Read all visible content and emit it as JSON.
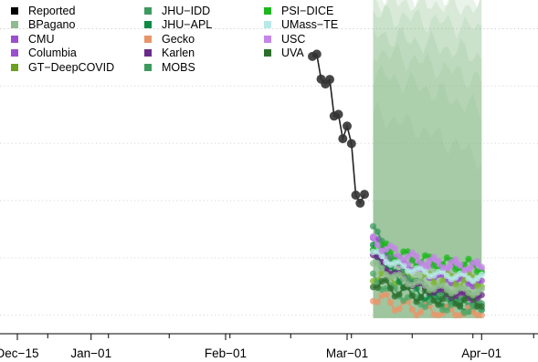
{
  "chart_data": {
    "type": "line",
    "x_ticks": [
      {
        "label": "Dec−15",
        "date": "2020-12-15"
      },
      {
        "label": "Jan−01",
        "date": "2021-01-01"
      },
      {
        "label": "Feb−01",
        "date": "2021-02-01"
      },
      {
        "label": "Mar−01",
        "date": "2021-03-01"
      },
      {
        "label": "Apr−01",
        "date": "2021-04-01"
      }
    ],
    "legend": {
      "placement": "top-left",
      "columns": [
        [
          {
            "name": "Reported",
            "color": "#000000"
          },
          {
            "name": "BPagano",
            "color": "#8fbc8f"
          },
          {
            "name": "CMU",
            "color": "#9b4fcf"
          },
          {
            "name": "Columbia",
            "color": "#9b4fcf"
          },
          {
            "name": "GT−DeepCOVID",
            "color": "#6aa121"
          }
        ],
        [
          {
            "name": "JHU−IDD",
            "color": "#3c9a5f"
          },
          {
            "name": "JHU−APL",
            "color": "#0e8a45"
          },
          {
            "name": "Gecko",
            "color": "#e8956a"
          },
          {
            "name": "Karlen",
            "color": "#6b2a8a"
          },
          {
            "name": "MOBS",
            "color": "#3c9a5f"
          }
        ],
        [
          {
            "name": "PSI−DICE",
            "color": "#1eb81e"
          },
          {
            "name": "UMass−TE",
            "color": "#b8e8e8"
          },
          {
            "name": "USC",
            "color": "#c486e8"
          },
          {
            "name": "UVA",
            "color": "#2d6e2d"
          }
        ]
      ]
    },
    "reported": {
      "name": "Reported",
      "color": "#222222",
      "x": [
        "2021-02-21",
        "2021-02-22",
        "2021-02-23",
        "2021-02-24",
        "2021-02-25",
        "2021-02-26",
        "2021-02-27",
        "2021-02-28",
        "2021-03-01",
        "2021-03-02",
        "2021-03-03",
        "2021-03-04",
        "2021-03-05"
      ],
      "y": [
        90.3,
        91.1,
        82.4,
        80.7,
        82.3,
        69.5,
        70.1,
        61.6,
        66.0,
        59.9,
        41.9,
        39.1,
        42.2
      ]
    },
    "forecast_window": {
      "start": "2021-03-07",
      "end": "2021-04-01",
      "band_color": "#8cbf8c"
    },
    "forecasts": [
      {
        "name": "CMU",
        "color": "#9b4fcf",
        "start": 27,
        "end": 11
      },
      {
        "name": "Columbia",
        "color": "#c486e8",
        "start": 21,
        "end": 16
      },
      {
        "name": "GT−DeepCOVID",
        "color": "#7db530",
        "start": 14,
        "end": 12
      },
      {
        "name": "JHU−IDD",
        "color": "#3c9a5f",
        "start": 31,
        "end": 3
      },
      {
        "name": "JHU−APL",
        "color": "#0e8a45",
        "start": 23,
        "end": 2
      },
      {
        "name": "Gecko",
        "color": "#e8956a",
        "start": 7,
        "end": 0
      },
      {
        "name": "Karlen",
        "color": "#6b2a8a",
        "start": 21,
        "end": 6
      },
      {
        "name": "MOBS",
        "color": "#50a86a",
        "start": 13,
        "end": 2
      },
      {
        "name": "PSI−DICE",
        "color": "#1eb81e",
        "start": 25,
        "end": 17
      },
      {
        "name": "UMass−TE",
        "color": "#b8e8e8",
        "start": 22,
        "end": 13
      },
      {
        "name": "USC",
        "color": "#c486e8",
        "start": 26,
        "end": 17
      },
      {
        "name": "UVA",
        "color": "#2d6e2d",
        "start": 12,
        "end": 5
      },
      {
        "name": "BPagano",
        "color": "#8fbc8f",
        "start": 18,
        "end": 8
      }
    ],
    "xlim": [
      "2020-12-11",
      "2021-04-14"
    ],
    "ylim": [
      -2,
      110
    ],
    "y_ticks_labeled": false,
    "grid": "dotted-horizontal"
  }
}
